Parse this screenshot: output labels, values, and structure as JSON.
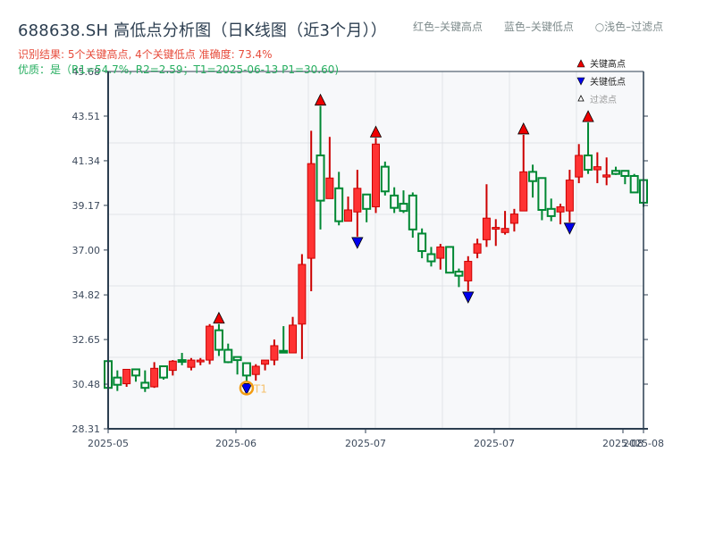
{
  "header": {
    "title": "688638.SH 高低点分析图（日K线图（近3个月））",
    "result_line": "识别结果: 5个关键高点, 4个关键低点  准确度: 73.4%",
    "quality_line": "优质：是（R1=54.7%, R2=2.59；T1=2025-06-13 P1=30.60)"
  },
  "top_legend": {
    "items": [
      "红色–关键高点",
      "蓝色–关键低点",
      "○浅色–过滤点"
    ]
  },
  "colors": {
    "up": "#ff3333",
    "up_edge": "#cc0000",
    "down": "#008833",
    "high_marker": "#ee0000",
    "low_marker": "#0000ee",
    "t1_ring": "#f39c12",
    "plot_bg": "#f7f8fa",
    "grid": "#e0e3e8",
    "axis": "#2c3e50"
  },
  "chart_data": {
    "type": "candlestick",
    "title": "688638.SH 高低点分析图（日K线图（近3个月））",
    "ylim": [
      28.31,
      45.68
    ],
    "y_ticks": [
      28.31,
      30.48,
      32.65,
      34.82,
      37.0,
      39.17,
      41.34,
      43.51,
      45.68
    ],
    "y_tick_labels": [
      "28.31",
      "30.48",
      "32.65",
      "34.82",
      "37.00",
      "39.17",
      "41.34",
      "43.51",
      "45.68"
    ],
    "x_tick_labels": [
      "2025-05",
      "2025-06",
      "2025-07",
      "2025-07",
      "2025-08",
      "2025-08"
    ],
    "legend": [
      "关键高点",
      "关键低点",
      "过滤点"
    ],
    "legend_position": "upper right",
    "annotations": [
      {
        "label": "T1",
        "date": "2025-06-13",
        "price": 30.6
      }
    ],
    "candles": [
      {
        "o": 30.3,
        "c": 31.6,
        "h": 31.6,
        "l": 30.3,
        "dir": "down"
      },
      {
        "o": 30.8,
        "c": 30.45,
        "h": 31.15,
        "l": 30.15,
        "dir": "down"
      },
      {
        "o": 30.5,
        "c": 31.2,
        "h": 31.2,
        "l": 30.35,
        "dir": "up"
      },
      {
        "o": 31.2,
        "c": 30.9,
        "h": 31.2,
        "l": 30.6,
        "dir": "down"
      },
      {
        "o": 30.55,
        "c": 30.3,
        "h": 31.15,
        "l": 30.1,
        "dir": "down"
      },
      {
        "o": 30.35,
        "c": 31.25,
        "h": 31.55,
        "l": 30.3,
        "dir": "up"
      },
      {
        "o": 31.35,
        "c": 30.8,
        "h": 31.35,
        "l": 30.7,
        "dir": "down"
      },
      {
        "o": 31.15,
        "c": 31.6,
        "h": 31.65,
        "l": 30.9,
        "dir": "up"
      },
      {
        "o": 31.65,
        "c": 31.6,
        "h": 32.0,
        "l": 31.4,
        "dir": "down"
      },
      {
        "o": 31.3,
        "c": 31.65,
        "h": 31.75,
        "l": 31.15,
        "dir": "up"
      },
      {
        "o": 31.65,
        "c": 31.65,
        "h": 31.75,
        "l": 31.4,
        "dir": "up"
      },
      {
        "o": 31.65,
        "c": 33.3,
        "h": 33.4,
        "l": 31.45,
        "dir": "up"
      },
      {
        "o": 33.1,
        "c": 32.15,
        "h": 33.4,
        "l": 31.85,
        "dir": "down"
      },
      {
        "o": 32.15,
        "c": 31.55,
        "h": 32.45,
        "l": 31.5,
        "dir": "down"
      },
      {
        "o": 31.8,
        "c": 31.65,
        "h": 31.8,
        "l": 30.95,
        "dir": "down"
      },
      {
        "o": 31.5,
        "c": 30.9,
        "h": 31.5,
        "l": 30.55,
        "dir": "down"
      },
      {
        "o": 30.95,
        "c": 31.35,
        "h": 31.45,
        "l": 30.65,
        "dir": "up"
      },
      {
        "o": 31.45,
        "c": 31.65,
        "h": 31.65,
        "l": 31.15,
        "dir": "up"
      },
      {
        "o": 31.65,
        "c": 32.35,
        "h": 32.65,
        "l": 31.4,
        "dir": "up"
      },
      {
        "o": 32.1,
        "c": 32.05,
        "h": 33.3,
        "l": 32.0,
        "dir": "down"
      },
      {
        "o": 32.0,
        "c": 33.35,
        "h": 33.75,
        "l": 32.0,
        "dir": "up"
      },
      {
        "o": 33.4,
        "c": 36.3,
        "h": 36.8,
        "l": 31.7,
        "dir": "up"
      },
      {
        "o": 36.6,
        "c": 41.2,
        "h": 42.8,
        "l": 35.0,
        "dir": "up"
      },
      {
        "o": 41.6,
        "c": 39.4,
        "h": 44.0,
        "l": 38.0,
        "dir": "down"
      },
      {
        "o": 39.5,
        "c": 40.5,
        "h": 42.5,
        "l": 39.5,
        "dir": "up"
      },
      {
        "o": 40.0,
        "c": 38.4,
        "h": 40.8,
        "l": 38.2,
        "dir": "down"
      },
      {
        "o": 38.4,
        "c": 38.95,
        "h": 39.6,
        "l": 38.4,
        "dir": "up"
      },
      {
        "o": 38.85,
        "c": 40.0,
        "h": 40.9,
        "l": 37.65,
        "dir": "up"
      },
      {
        "o": 39.7,
        "c": 39.0,
        "h": 39.7,
        "l": 38.35,
        "dir": "down"
      },
      {
        "o": 39.1,
        "c": 42.15,
        "h": 42.45,
        "l": 38.8,
        "dir": "up"
      },
      {
        "o": 41.05,
        "c": 39.85,
        "h": 41.3,
        "l": 39.65,
        "dir": "down"
      },
      {
        "o": 39.65,
        "c": 39.05,
        "h": 40.05,
        "l": 38.8,
        "dir": "down"
      },
      {
        "o": 39.25,
        "c": 38.9,
        "h": 39.9,
        "l": 38.8,
        "dir": "down"
      },
      {
        "o": 39.65,
        "c": 38.0,
        "h": 39.8,
        "l": 37.6,
        "dir": "down"
      },
      {
        "o": 37.8,
        "c": 36.95,
        "h": 38.05,
        "l": 36.6,
        "dir": "down"
      },
      {
        "o": 36.8,
        "c": 36.45,
        "h": 37.15,
        "l": 36.2,
        "dir": "down"
      },
      {
        "o": 36.6,
        "c": 37.15,
        "h": 37.3,
        "l": 36.05,
        "dir": "up"
      },
      {
        "o": 37.15,
        "c": 35.9,
        "h": 37.15,
        "l": 35.9,
        "dir": "down"
      },
      {
        "o": 35.75,
        "c": 35.95,
        "h": 36.1,
        "l": 35.2,
        "dir": "down"
      },
      {
        "o": 35.5,
        "c": 36.45,
        "h": 36.7,
        "l": 35.0,
        "dir": "up"
      },
      {
        "o": 36.85,
        "c": 37.3,
        "h": 37.55,
        "l": 36.6,
        "dir": "up"
      },
      {
        "o": 37.5,
        "c": 38.55,
        "h": 40.2,
        "l": 37.15,
        "dir": "up"
      },
      {
        "o": 38.1,
        "c": 38.1,
        "h": 38.5,
        "l": 37.2,
        "dir": "up"
      },
      {
        "o": 37.85,
        "c": 38.05,
        "h": 38.9,
        "l": 37.75,
        "dir": "up"
      },
      {
        "o": 38.3,
        "c": 38.75,
        "h": 39.0,
        "l": 37.9,
        "dir": "up"
      },
      {
        "o": 38.9,
        "c": 40.8,
        "h": 42.6,
        "l": 38.9,
        "dir": "up"
      },
      {
        "o": 40.8,
        "c": 40.35,
        "h": 41.15,
        "l": 39.55,
        "dir": "down"
      },
      {
        "o": 40.5,
        "c": 38.95,
        "h": 40.5,
        "l": 38.45,
        "dir": "down"
      },
      {
        "o": 39.0,
        "c": 38.65,
        "h": 39.5,
        "l": 38.4,
        "dir": "down"
      },
      {
        "o": 38.85,
        "c": 39.1,
        "h": 39.25,
        "l": 38.25,
        "dir": "up"
      },
      {
        "o": 38.9,
        "c": 40.4,
        "h": 40.9,
        "l": 38.35,
        "dir": "up"
      },
      {
        "o": 40.55,
        "c": 41.6,
        "h": 42.15,
        "l": 40.25,
        "dir": "up"
      },
      {
        "o": 41.6,
        "c": 40.9,
        "h": 43.2,
        "l": 40.7,
        "dir": "down"
      },
      {
        "o": 40.9,
        "c": 41.05,
        "h": 41.75,
        "l": 40.25,
        "dir": "up"
      },
      {
        "o": 40.55,
        "c": 40.65,
        "h": 41.5,
        "l": 40.15,
        "dir": "up"
      },
      {
        "o": 40.7,
        "c": 40.85,
        "h": 41.05,
        "l": 40.65,
        "dir": "down"
      },
      {
        "o": 40.85,
        "c": 40.6,
        "h": 40.85,
        "l": 40.2,
        "dir": "down"
      },
      {
        "o": 40.6,
        "c": 39.8,
        "h": 40.7,
        "l": 39.8,
        "dir": "down"
      },
      {
        "o": 40.4,
        "c": 39.3,
        "h": 40.45,
        "l": 39.1,
        "dir": "down"
      }
    ],
    "key_highs": [
      {
        "idx": 12,
        "price": 33.4
      },
      {
        "idx": 23,
        "price": 44.0
      },
      {
        "idx": 29,
        "price": 42.45
      },
      {
        "idx": 45,
        "price": 42.6
      },
      {
        "idx": 52,
        "price": 43.2
      }
    ],
    "key_lows": [
      {
        "idx": 15,
        "price": 30.55
      },
      {
        "idx": 27,
        "price": 37.65
      },
      {
        "idx": 39,
        "price": 35.0
      },
      {
        "idx": 50,
        "price": 38.35
      }
    ]
  },
  "legend_box": {
    "high_label": "关键高点",
    "low_label": "关键低点",
    "filtered_label": "过滤点"
  },
  "t1_label": "T1"
}
